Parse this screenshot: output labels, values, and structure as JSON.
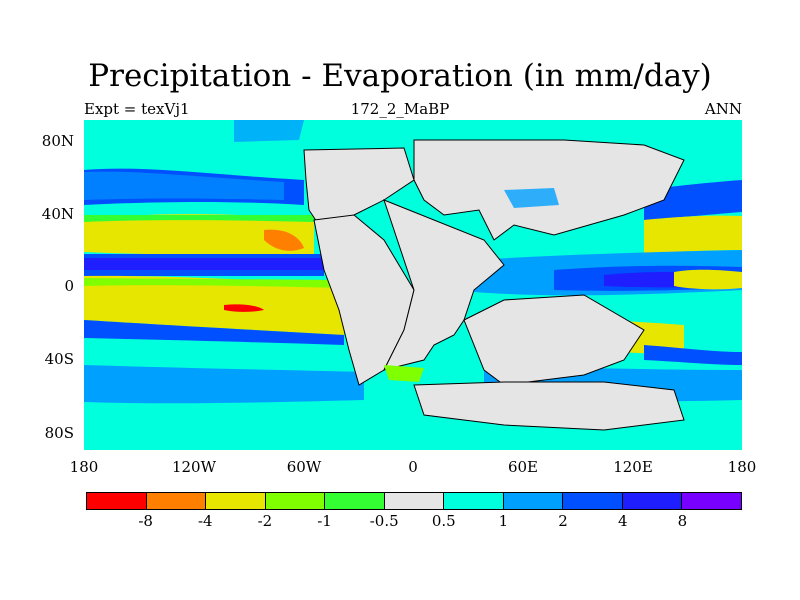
{
  "title": "Precipitation - Evaporation (in mm/day)",
  "left_label": "Expt = texVj1",
  "center_label": "172_2_MaBP",
  "right_label": "ANN",
  "map": {
    "type": "contour_map",
    "projection": "cylindrical_equidistant",
    "x_ticks": [
      "180",
      "120W",
      "60W",
      "0",
      "60E",
      "120E",
      "180"
    ],
    "y_ticks": [
      "80N",
      "40N",
      "0",
      "40S",
      "80S"
    ],
    "land_color": "#e5e5e5"
  },
  "colorbar": {
    "colors": [
      "#ff0000",
      "#ff7f00",
      "#e6e600",
      "#80ff00",
      "#33ff33",
      "#e5e5e5",
      "#00ffdd",
      "#00a0ff",
      "#0050ff",
      "#1e1eff",
      "#7800ff"
    ],
    "labels": [
      "-8",
      "-4",
      "-2",
      "-1",
      "-0.5",
      "0.5",
      "1",
      "2",
      "4",
      "8"
    ]
  }
}
